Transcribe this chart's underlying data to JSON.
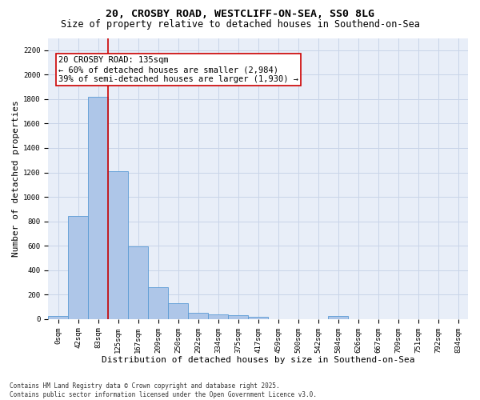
{
  "title_line1": "20, CROSBY ROAD, WESTCLIFF-ON-SEA, SS0 8LG",
  "title_line2": "Size of property relative to detached houses in Southend-on-Sea",
  "xlabel": "Distribution of detached houses by size in Southend-on-Sea",
  "ylabel": "Number of detached properties",
  "bar_labels": [
    "0sqm",
    "42sqm",
    "83sqm",
    "125sqm",
    "167sqm",
    "209sqm",
    "250sqm",
    "292sqm",
    "334sqm",
    "375sqm",
    "417sqm",
    "459sqm",
    "500sqm",
    "542sqm",
    "584sqm",
    "626sqm",
    "667sqm",
    "709sqm",
    "751sqm",
    "792sqm",
    "834sqm"
  ],
  "bar_values": [
    25,
    845,
    1820,
    1210,
    595,
    260,
    130,
    50,
    40,
    30,
    20,
    0,
    0,
    0,
    25,
    0,
    0,
    0,
    0,
    0,
    0
  ],
  "bar_color": "#aec6e8",
  "bar_edge_color": "#5b9bd5",
  "vline_pos": 2.5,
  "vline_color": "#cc0000",
  "annotation_text": "20 CROSBY ROAD: 135sqm\n← 60% of detached houses are smaller (2,984)\n39% of semi-detached houses are larger (1,930) →",
  "annotation_box_color": "#cc0000",
  "annotation_box_facecolor": "white",
  "ylim": [
    0,
    2300
  ],
  "yticks": [
    0,
    200,
    400,
    600,
    800,
    1000,
    1200,
    1400,
    1600,
    1800,
    2000,
    2200
  ],
  "grid_color": "#c8d4e8",
  "bg_color": "#e8eef8",
  "footer_text": "Contains HM Land Registry data © Crown copyright and database right 2025.\nContains public sector information licensed under the Open Government Licence v3.0.",
  "title_fontsize": 9.5,
  "subtitle_fontsize": 8.5,
  "tick_fontsize": 6.5,
  "xlabel_fontsize": 8,
  "ylabel_fontsize": 8,
  "annotation_fontsize": 7.5,
  "footer_fontsize": 5.5
}
